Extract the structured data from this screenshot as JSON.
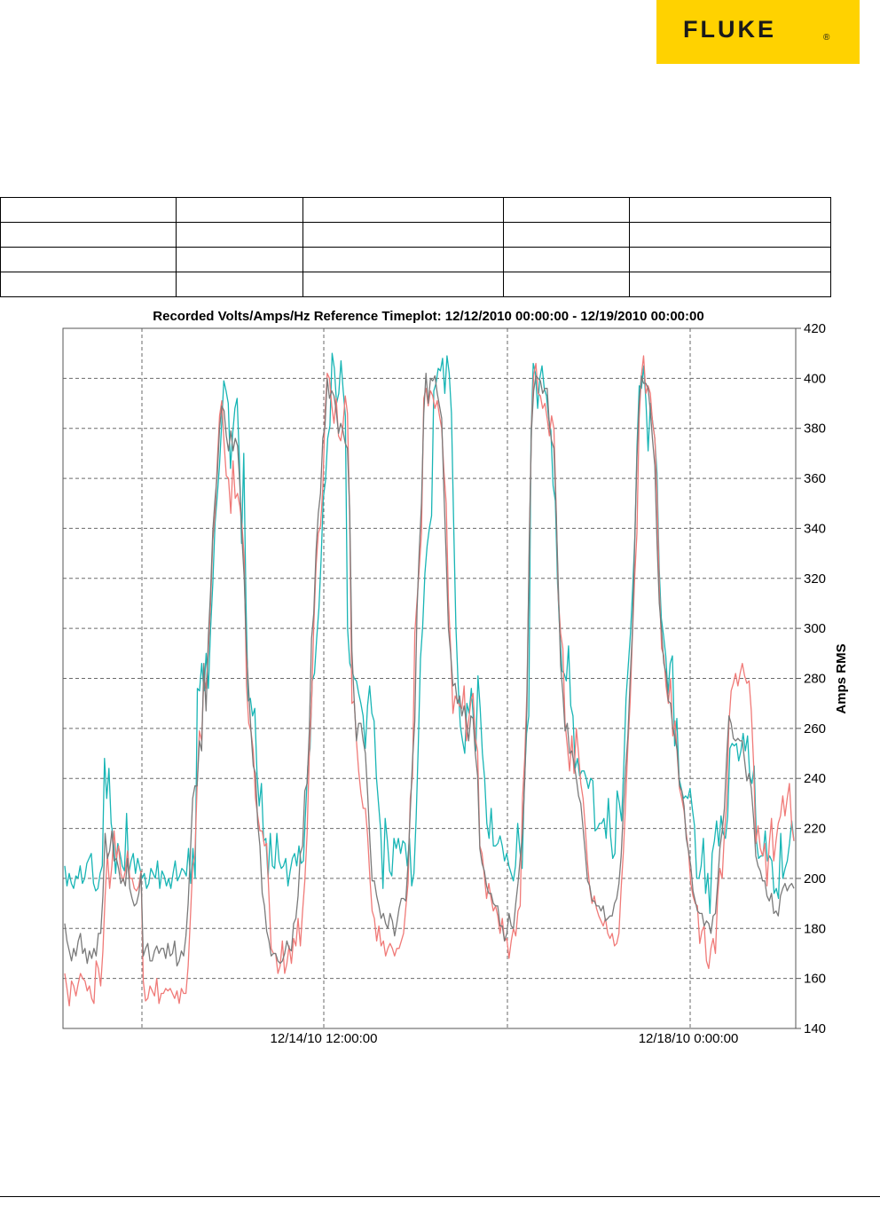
{
  "brand": {
    "logo_text": "FLUKE",
    "logo_reg": "®",
    "logo_color": "#ffd200"
  },
  "info_table": {
    "rows": [
      [
        "",
        "",
        "",
        "",
        ""
      ],
      [
        "",
        "",
        "",
        "",
        ""
      ],
      [
        "",
        "",
        "",
        "",
        ""
      ],
      [
        "",
        "",
        "",
        "",
        ""
      ]
    ]
  },
  "chart_data": {
    "type": "line",
    "title": "Recorded Volts/Amps/Hz Reference Timeplot: 12/12/2010 00:00:00 - 12/19/2010 00:00:00",
    "ylabel": "Amps  RMS",
    "xlabel": "",
    "ylim": [
      140,
      420
    ],
    "y_ticks": [
      140,
      160,
      180,
      200,
      220,
      240,
      260,
      280,
      300,
      320,
      340,
      360,
      380,
      400,
      420
    ],
    "x_tick_labels": [
      "12/14/10 12:00:00",
      "12/18/10 0:00:00"
    ],
    "grid": true,
    "colors": {
      "teal": "#18b5b5",
      "salmon": "#f07a78",
      "gray": "#7a7a7a"
    },
    "series": [
      {
        "color": "teal",
        "values": [
          205,
          197,
          202,
          198,
          196,
          201,
          200,
          205,
          198,
          200,
          206,
          208,
          210,
          198,
          195,
          196,
          202,
          205,
          248,
          232,
          244,
          222,
          216,
          202,
          214,
          210,
          205,
          203,
          226,
          202,
          207,
          210,
          202,
          208,
          204,
          200,
          202,
          196,
          198,
          204,
          202,
          200,
          207,
          196,
          203,
          201,
          197,
          200,
          196,
          202,
          207,
          199,
          201,
          204,
          203,
          201,
          212,
          198,
          212,
          200,
          276,
          275,
          286,
          275,
          290,
          276,
          300,
          318,
          342,
          353,
          365,
          382,
          399,
          395,
          390,
          364,
          378,
          388,
          392,
          368,
          334,
          370,
          310,
          271,
          272,
          265,
          268,
          242,
          229,
          238,
          215,
          216,
          200,
          218,
          205,
          204,
          218,
          207,
          204,
          205,
          208,
          197,
          203,
          208,
          210,
          205,
          213,
          206,
          207,
          227,
          245,
          252,
          279,
          282,
          296,
          308,
          327,
          352,
          359,
          376,
          381,
          410,
          404,
          390,
          394,
          407,
          395,
          385,
          300,
          286,
          283,
          280,
          279,
          274,
          270,
          265,
          252,
          269,
          277,
          266,
          263,
          241,
          230,
          219,
          196,
          224,
          215,
          203,
          201,
          216,
          212,
          216,
          210,
          215,
          214,
          205,
          216,
          197,
          202,
          224,
          253,
          288,
          301,
          322,
          333,
          340,
          345,
          395,
          398,
          404,
          403,
          408,
          394,
          409,
          402,
          386,
          342,
          301,
          278,
          261,
          255,
          250,
          270,
          266,
          276,
          263,
          251,
          281,
          268,
          250,
          240,
          222,
          216,
          228,
          213,
          213,
          214,
          217,
          213,
          207,
          210,
          205,
          202,
          199,
          205,
          222,
          211,
          204,
          238,
          258,
          265,
          377,
          406,
          402,
          388,
          400,
          405,
          396,
          393,
          384,
          379,
          357,
          351,
          318,
          299,
          283,
          282,
          279,
          293,
          269,
          265,
          244,
          248,
          241,
          243,
          243,
          240,
          236,
          240,
          239,
          219,
          220,
          222,
          222,
          224,
          216,
          232,
          217,
          208,
          210,
          235,
          230,
          223,
          245,
          272,
          285,
          298,
          316,
          337,
          373,
          397,
          396,
          405,
          391,
          371,
          390,
          383,
          376,
          362,
          324,
          304,
          297,
          289,
          274,
          286,
          289,
          253,
          264,
          240,
          236,
          232,
          233,
          232,
          236,
          228,
          221,
          200,
          200,
          205,
          216,
          194,
          202,
          186,
          210,
          215,
          223,
          213,
          225,
          218,
          216,
          225,
          252,
          254,
          253,
          254,
          247,
          251,
          258,
          251,
          257,
          241,
          238,
          245,
          215,
          208,
          209,
          209,
          219,
          207,
          209,
          207,
          194,
          196,
          192,
          218,
          200,
          204,
          207,
          214,
          223,
          215
        ]
      },
      {
        "color": "salmon",
        "values": [
          162,
          156,
          149,
          159,
          157,
          153,
          158,
          162,
          160,
          159,
          155,
          157,
          152,
          150,
          167,
          164,
          157,
          171,
          193,
          210,
          196,
          205,
          219,
          208,
          213,
          202,
          199,
          203,
          211,
          200,
          200,
          196,
          195,
          197,
          203,
          159,
          151,
          152,
          157,
          155,
          153,
          160,
          150,
          154,
          154,
          156,
          155,
          156,
          154,
          152,
          155,
          150,
          156,
          154,
          154,
          165,
          184,
          205,
          209,
          237,
          259,
          255,
          281,
          276,
          291,
          310,
          335,
          346,
          367,
          385,
          391,
          374,
          361,
          360,
          346,
          367,
          352,
          354,
          349,
          341,
          328,
          277,
          262,
          259,
          251,
          232,
          225,
          219,
          219,
          213,
          214,
          193,
          172,
          170,
          170,
          162,
          165,
          175,
          162,
          166,
          173,
          166,
          176,
          173,
          184,
          173,
          187,
          199,
          218,
          250,
          270,
          301,
          325,
          338,
          341,
          356,
          386,
          402,
          400,
          389,
          382,
          392,
          377,
          375,
          381,
          393,
          386,
          344,
          270,
          271,
          255,
          243,
          234,
          228,
          228,
          217,
          200,
          187,
          184,
          175,
          181,
          173,
          175,
          169,
          172,
          174,
          172,
          169,
          172,
          172,
          175,
          178,
          188,
          198,
          232,
          241,
          298,
          311,
          324,
          338,
          392,
          396,
          389,
          395,
          393,
          388,
          391,
          385,
          380,
          363,
          350,
          311,
          292,
          266,
          273,
          271,
          269,
          268,
          277,
          255,
          263,
          271,
          274,
          256,
          251,
          213,
          210,
          201,
          192,
          198,
          192,
          187,
          189,
          185,
          178,
          184,
          175,
          176,
          168,
          175,
          180,
          177,
          187,
          189,
          232,
          248,
          275,
          329,
          381,
          401,
          406,
          394,
          393,
          388,
          390,
          384,
          377,
          385,
          380,
          349,
          312,
          298,
          292,
          262,
          253,
          243,
          257,
          242,
          260,
          250,
          238,
          232,
          220,
          206,
          196,
          190,
          193,
          188,
          185,
          183,
          181,
          184,
          178,
          176,
          178,
          173,
          174,
          178,
          196,
          211,
          231,
          253,
          271,
          297,
          320,
          338,
          384,
          401,
          409,
          394,
          397,
          394,
          382,
          376,
          353,
          317,
          292,
          289,
          277,
          270,
          280,
          257,
          263,
          249,
          236,
          232,
          227,
          218,
          211,
          198,
          193,
          190,
          189,
          174,
          179,
          181,
          167,
          164,
          172,
          176,
          170,
          193,
          204,
          200,
          218,
          230,
          262,
          275,
          278,
          282,
          277,
          282,
          286,
          281,
          278,
          279,
          267,
          246,
          214,
          221,
          212,
          209,
          214,
          197,
          214,
          224,
          207,
          215,
          222,
          225,
          233,
          225,
          232,
          238,
          221,
          215
        ]
      },
      {
        "color": "gray",
        "values": [
          182,
          175,
          171,
          167,
          172,
          169,
          175,
          178,
          170,
          172,
          166,
          171,
          168,
          172,
          169,
          178,
          178,
          193,
          218,
          208,
          211,
          219,
          207,
          208,
          204,
          198,
          200,
          197,
          208,
          196,
          192,
          189,
          190,
          194,
          202,
          169,
          172,
          174,
          167,
          167,
          171,
          173,
          170,
          172,
          172,
          168,
          174,
          169,
          170,
          175,
          165,
          167,
          171,
          169,
          177,
          190,
          210,
          232,
          237,
          237,
          255,
          251,
          286,
          267,
          297,
          315,
          339,
          352,
          362,
          380,
          389,
          387,
          377,
          371,
          379,
          371,
          376,
          373,
          358,
          336,
          320,
          291,
          275,
          259,
          245,
          242,
          222,
          213,
          194,
          189,
          179,
          175,
          169,
          170,
          170,
          167,
          166,
          167,
          170,
          175,
          172,
          171,
          182,
          184,
          193,
          210,
          213,
          235,
          238,
          259,
          296,
          306,
          331,
          346,
          354,
          376,
          381,
          400,
          392,
          395,
          393,
          387,
          378,
          382,
          379,
          374,
          372,
          347,
          291,
          271,
          255,
          262,
          262,
          255,
          250,
          234,
          215,
          199,
          199,
          193,
          189,
          184,
          186,
          182,
          180,
          186,
          183,
          177,
          182,
          188,
          192,
          192,
          191,
          206,
          227,
          247,
          263,
          307,
          331,
          350,
          386,
          402,
          390,
          400,
          399,
          401,
          394,
          389,
          384,
          355,
          328,
          300,
          290,
          277,
          278,
          270,
          273,
          265,
          269,
          263,
          255,
          265,
          264,
          250,
          241,
          212,
          206,
          203,
          197,
          194,
          194,
          190,
          189,
          189,
          181,
          181,
          175,
          178,
          186,
          181,
          180,
          190,
          198,
          208,
          218,
          239,
          269,
          335,
          379,
          395,
          401,
          400,
          399,
          394,
          396,
          396,
          381,
          375,
          372,
          347,
          317,
          285,
          274,
          259,
          262,
          250,
          251,
          246,
          240,
          233,
          230,
          220,
          210,
          199,
          197,
          191,
          191,
          189,
          189,
          187,
          189,
          183,
          184,
          185,
          185,
          190,
          192,
          198,
          209,
          228,
          244,
          257,
          280,
          299,
          333,
          368,
          390,
          401,
          398,
          398,
          396,
          387,
          375,
          365,
          334,
          310,
          299,
          286,
          282,
          271,
          270,
          260,
          256,
          251,
          237,
          235,
          229,
          216,
          211,
          205,
          195,
          191,
          187,
          186,
          186,
          181,
          183,
          182,
          178,
          185,
          186,
          198,
          212,
          219,
          228,
          248,
          265,
          262,
          256,
          255,
          256,
          255,
          255,
          247,
          239,
          242,
          236,
          224,
          209,
          205,
          203,
          199,
          199,
          193,
          191,
          194,
          186,
          187,
          185,
          193,
          196,
          198,
          195,
          197,
          198,
          196
        ]
      }
    ]
  }
}
